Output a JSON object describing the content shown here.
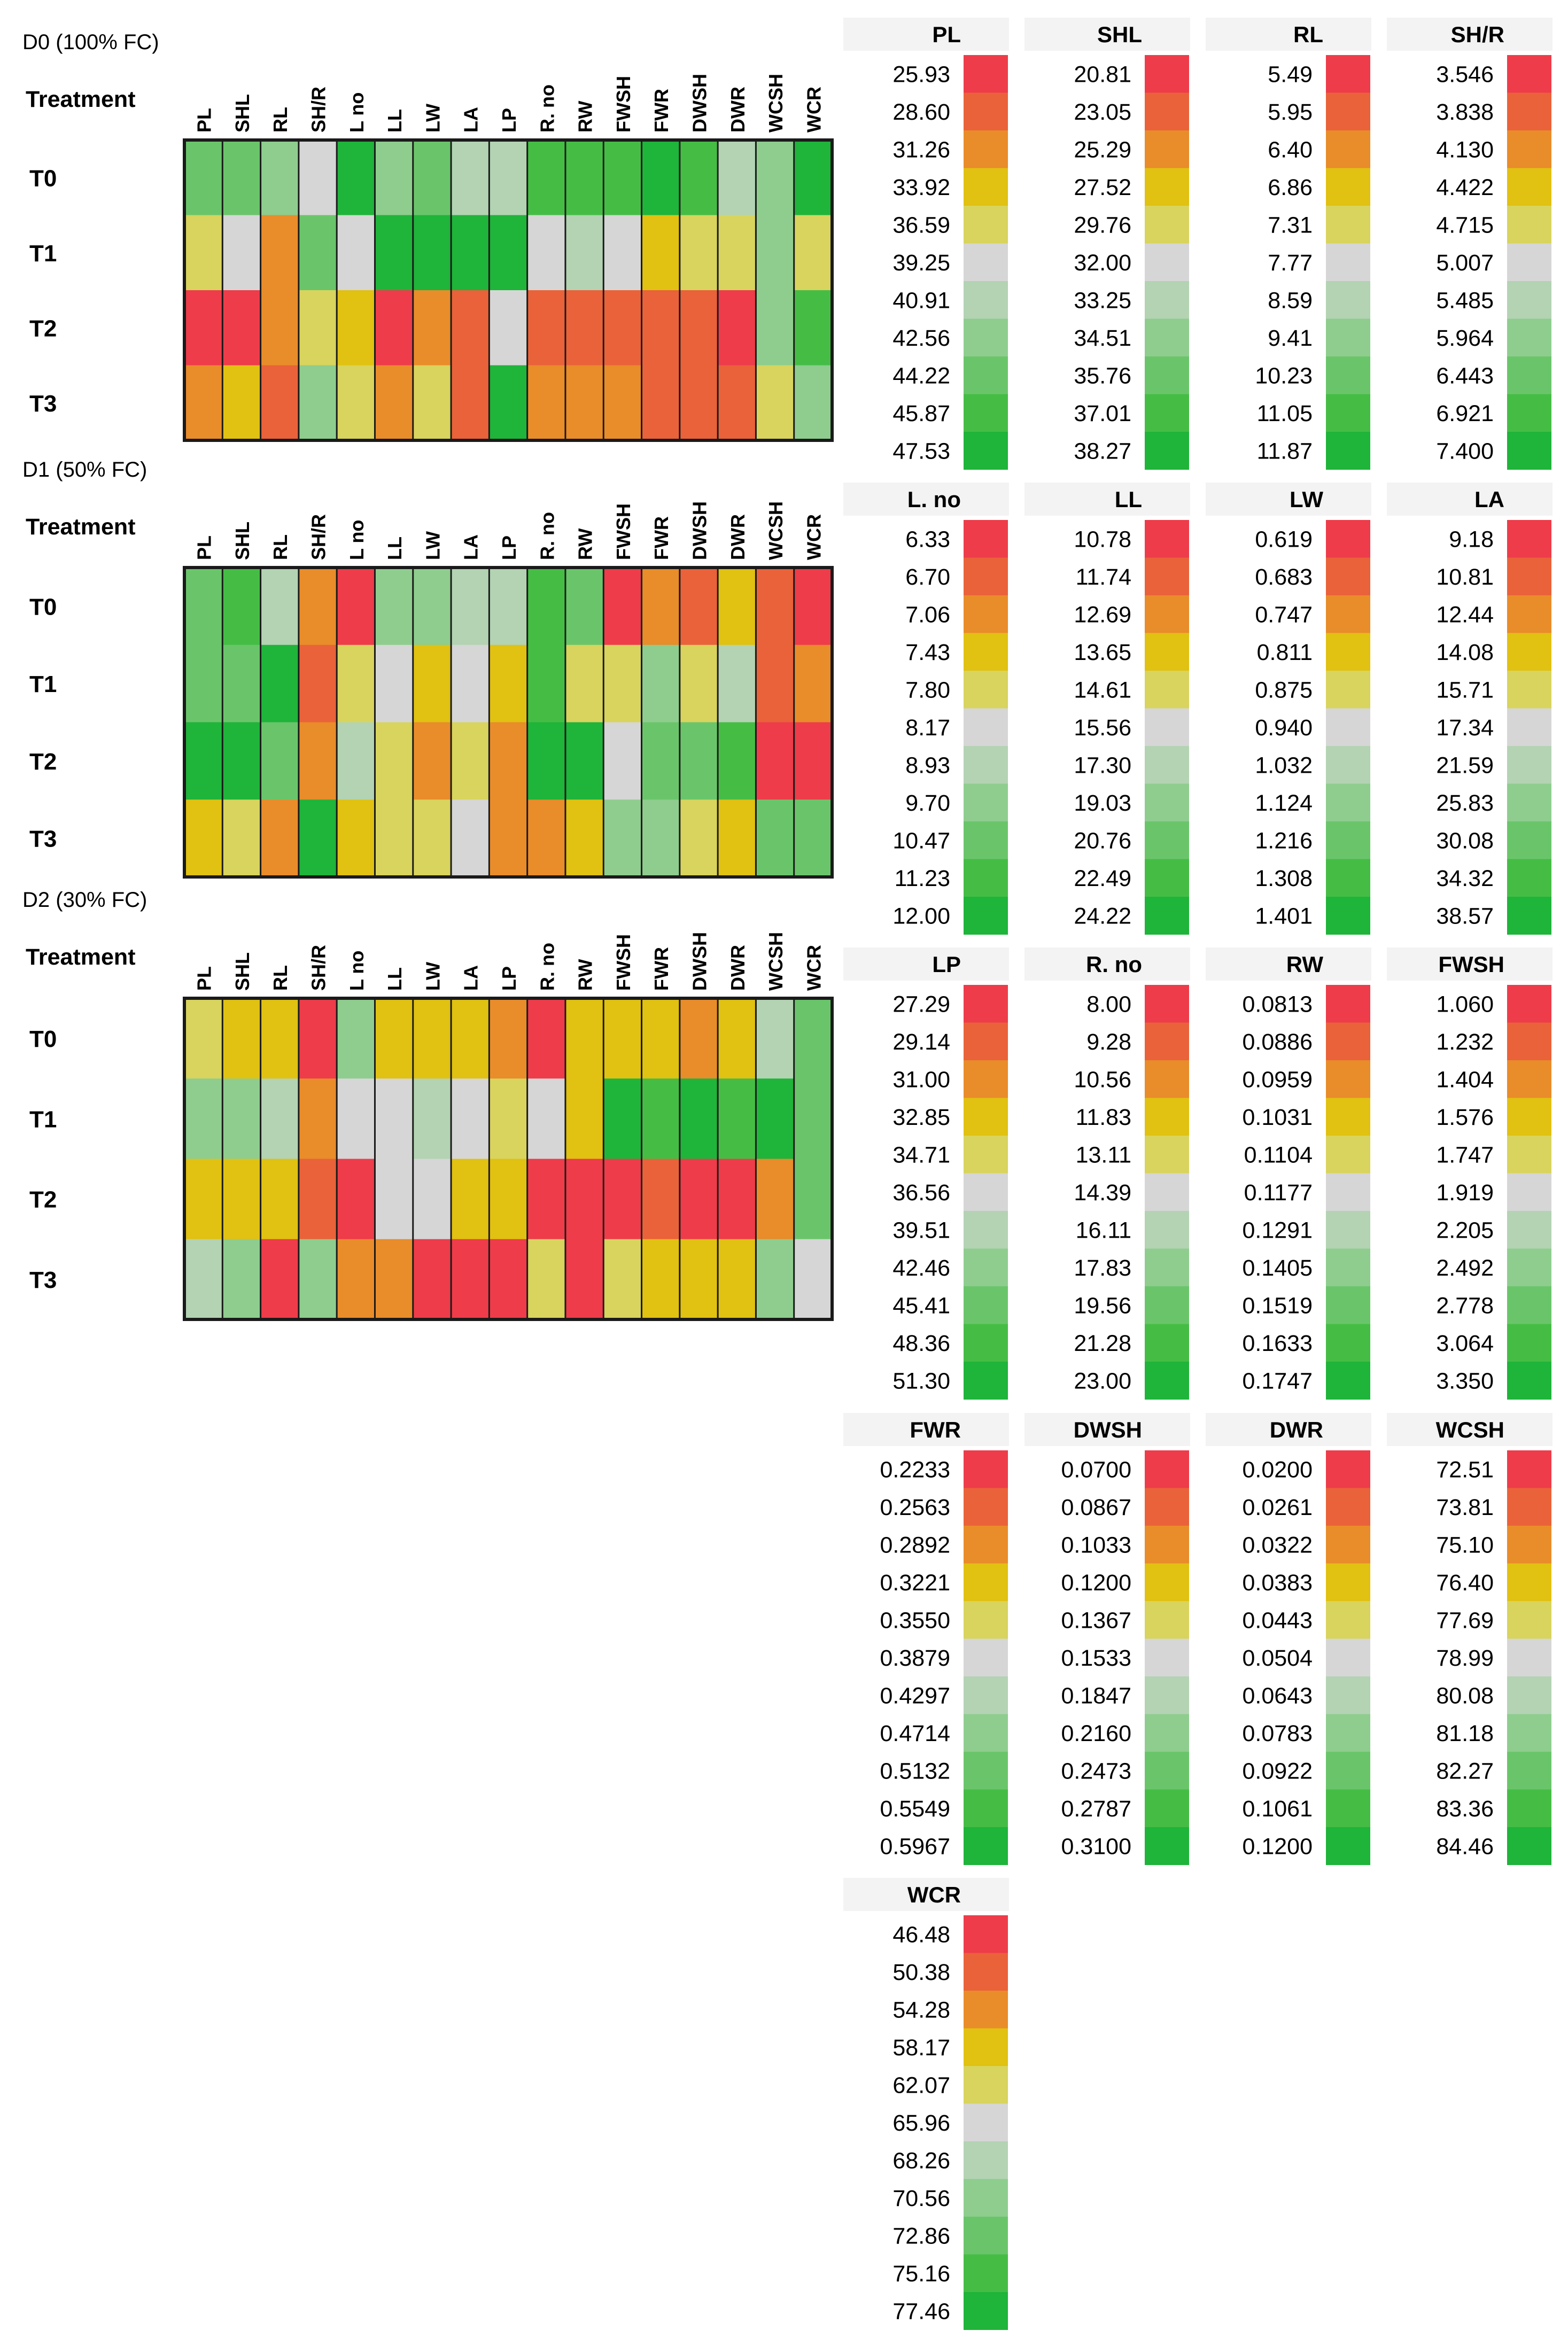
{
  "palette": [
    "#ee3c4a",
    "#ea6239",
    "#e98c2a",
    "#e1c111",
    "#d8d45d",
    "#d6d6d6",
    "#b3d3b3",
    "#8ecd8e",
    "#6ac56a",
    "#45bd45",
    "#1fb43a"
  ],
  "chart_data": {
    "type": "heatmap",
    "variables": [
      "PL",
      "SHL",
      "RL",
      "SH/R",
      "L. no",
      "LL",
      "LW",
      "LA",
      "LP",
      "R. no",
      "RW",
      "FWSH",
      "FWR",
      "DWSH",
      "DWR",
      "WCSH",
      "WCR"
    ],
    "column_labels": [
      "PL",
      "SHL",
      "RL",
      "SH/R",
      "L no",
      "LL",
      "LW",
      "LA",
      "LP",
      "R. no",
      "RW",
      "FWSH",
      "FWR",
      "DWSH",
      "DWR",
      "WCSH",
      "WCR"
    ],
    "row_header": "Treatment",
    "treatments": [
      "T0",
      "T1",
      "T2",
      "T3"
    ],
    "panels": [
      {
        "title": "D0 (100% FC)",
        "levels": [
          [
            8,
            8,
            7,
            5,
            10,
            7,
            8,
            6,
            6,
            9,
            9,
            9,
            10,
            9,
            6,
            7,
            10
          ],
          [
            4,
            5,
            2,
            8,
            5,
            10,
            10,
            10,
            10,
            5,
            6,
            5,
            3,
            4,
            4,
            7,
            4
          ],
          [
            0,
            0,
            2,
            4,
            3,
            0,
            2,
            1,
            5,
            1,
            1,
            1,
            1,
            1,
            0,
            7,
            9
          ],
          [
            2,
            3,
            1,
            7,
            4,
            2,
            4,
            1,
            10,
            2,
            2,
            2,
            1,
            1,
            1,
            4,
            7
          ]
        ]
      },
      {
        "title": "D1 (50% FC)",
        "levels": [
          [
            8,
            9,
            6,
            2,
            0,
            7,
            7,
            6,
            6,
            9,
            8,
            0,
            2,
            1,
            3,
            1,
            0
          ],
          [
            8,
            8,
            10,
            1,
            4,
            5,
            3,
            5,
            3,
            9,
            4,
            4,
            7,
            4,
            6,
            1,
            2
          ],
          [
            10,
            10,
            8,
            2,
            6,
            4,
            2,
            4,
            2,
            10,
            10,
            5,
            8,
            8,
            9,
            0,
            0
          ],
          [
            3,
            4,
            2,
            10,
            3,
            4,
            4,
            5,
            2,
            2,
            3,
            7,
            7,
            4,
            3,
            8,
            8
          ]
        ]
      },
      {
        "title": "D2 (30% FC)",
        "levels": [
          [
            4,
            3,
            3,
            0,
            7,
            3,
            3,
            3,
            2,
            0,
            3,
            3,
            3,
            2,
            3,
            6,
            8
          ],
          [
            7,
            7,
            6,
            2,
            5,
            5,
            6,
            5,
            4,
            5,
            3,
            10,
            9,
            10,
            9,
            10,
            8
          ],
          [
            3,
            3,
            3,
            1,
            0,
            5,
            5,
            3,
            3,
            0,
            0,
            0,
            1,
            0,
            0,
            2,
            8
          ],
          [
            6,
            7,
            0,
            7,
            2,
            2,
            0,
            0,
            0,
            4,
            0,
            4,
            3,
            3,
            3,
            7,
            5
          ]
        ]
      }
    ],
    "legends": [
      {
        "name": "PL",
        "values": [
          "25.93",
          "28.60",
          "31.26",
          "33.92",
          "36.59",
          "39.25",
          "40.91",
          "42.56",
          "44.22",
          "45.87",
          "47.53"
        ]
      },
      {
        "name": "SHL",
        "values": [
          "20.81",
          "23.05",
          "25.29",
          "27.52",
          "29.76",
          "32.00",
          "33.25",
          "34.51",
          "35.76",
          "37.01",
          "38.27"
        ]
      },
      {
        "name": "RL",
        "values": [
          "5.49",
          "5.95",
          "6.40",
          "6.86",
          "7.31",
          "7.77",
          "8.59",
          "9.41",
          "10.23",
          "11.05",
          "11.87"
        ]
      },
      {
        "name": "SH/R",
        "values": [
          "3.546",
          "3.838",
          "4.130",
          "4.422",
          "4.715",
          "5.007",
          "5.485",
          "5.964",
          "6.443",
          "6.921",
          "7.400"
        ]
      },
      {
        "name": "L. no",
        "values": [
          "6.33",
          "6.70",
          "7.06",
          "7.43",
          "7.80",
          "8.17",
          "8.93",
          "9.70",
          "10.47",
          "11.23",
          "12.00"
        ]
      },
      {
        "name": "LL",
        "values": [
          "10.78",
          "11.74",
          "12.69",
          "13.65",
          "14.61",
          "15.56",
          "17.30",
          "19.03",
          "20.76",
          "22.49",
          "24.22"
        ]
      },
      {
        "name": "LW",
        "values": [
          "0.619",
          "0.683",
          "0.747",
          "0.811",
          "0.875",
          "0.940",
          "1.032",
          "1.124",
          "1.216",
          "1.308",
          "1.401"
        ]
      },
      {
        "name": "LA",
        "values": [
          "9.18",
          "10.81",
          "12.44",
          "14.08",
          "15.71",
          "17.34",
          "21.59",
          "25.83",
          "30.08",
          "34.32",
          "38.57"
        ]
      },
      {
        "name": "LP",
        "values": [
          "27.29",
          "29.14",
          "31.00",
          "32.85",
          "34.71",
          "36.56",
          "39.51",
          "42.46",
          "45.41",
          "48.36",
          "51.30"
        ]
      },
      {
        "name": "R. no",
        "values": [
          "8.00",
          "9.28",
          "10.56",
          "11.83",
          "13.11",
          "14.39",
          "16.11",
          "17.83",
          "19.56",
          "21.28",
          "23.00"
        ]
      },
      {
        "name": "RW",
        "values": [
          "0.0813",
          "0.0886",
          "0.0959",
          "0.1031",
          "0.1104",
          "0.1177",
          "0.1291",
          "0.1405",
          "0.1519",
          "0.1633",
          "0.1747"
        ]
      },
      {
        "name": "FWSH",
        "values": [
          "1.060",
          "1.232",
          "1.404",
          "1.576",
          "1.747",
          "1.919",
          "2.205",
          "2.492",
          "2.778",
          "3.064",
          "3.350"
        ]
      },
      {
        "name": "FWR",
        "values": [
          "0.2233",
          "0.2563",
          "0.2892",
          "0.3221",
          "0.3550",
          "0.3879",
          "0.4297",
          "0.4714",
          "0.5132",
          "0.5549",
          "0.5967"
        ]
      },
      {
        "name": "DWSH",
        "values": [
          "0.0700",
          "0.0867",
          "0.1033",
          "0.1200",
          "0.1367",
          "0.1533",
          "0.1847",
          "0.2160",
          "0.2473",
          "0.2787",
          "0.3100"
        ]
      },
      {
        "name": "DWR",
        "values": [
          "0.0200",
          "0.0261",
          "0.0322",
          "0.0383",
          "0.0443",
          "0.0504",
          "0.0643",
          "0.0783",
          "0.0922",
          "0.1061",
          "0.1200"
        ]
      },
      {
        "name": "WCSH",
        "values": [
          "72.51",
          "73.81",
          "75.10",
          "76.40",
          "77.69",
          "78.99",
          "80.08",
          "81.18",
          "82.27",
          "83.36",
          "84.46"
        ]
      },
      {
        "name": "WCR",
        "values": [
          "46.48",
          "50.38",
          "54.28",
          "58.17",
          "62.07",
          "65.96",
          "68.26",
          "70.56",
          "72.86",
          "75.16",
          "77.46"
        ]
      }
    ]
  }
}
